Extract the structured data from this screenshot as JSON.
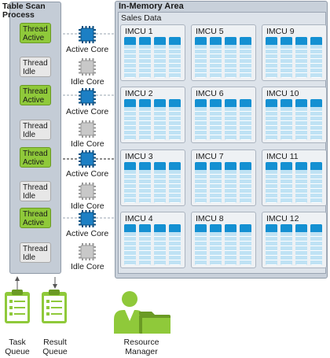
{
  "scan_process": {
    "title_line1": "Table Scan",
    "title_line2": "Process",
    "threads": [
      {
        "line1": "Thread",
        "line2": "Active",
        "state": "active"
      },
      {
        "line1": "Thread",
        "line2": "Idle",
        "state": "idle"
      },
      {
        "line1": "Thread",
        "line2": "Active",
        "state": "active"
      },
      {
        "line1": "Thread",
        "line2": "Idle",
        "state": "idle"
      },
      {
        "line1": "Thread",
        "line2": "Active",
        "state": "active"
      },
      {
        "line1": "Thread",
        "line2": "Idle",
        "state": "idle"
      },
      {
        "line1": "Thread",
        "line2": "Active",
        "state": "active"
      },
      {
        "line1": "Thread",
        "line2": "Idle",
        "state": "idle"
      }
    ]
  },
  "cores": [
    {
      "label": "Active Core",
      "state": "active"
    },
    {
      "label": "Idle Core",
      "state": "idle"
    },
    {
      "label": "Active Core",
      "state": "active"
    },
    {
      "label": "Idle Core",
      "state": "idle"
    },
    {
      "label": "Active Core",
      "state": "active"
    },
    {
      "label": "Idle Core",
      "state": "idle"
    },
    {
      "label": "Active Core",
      "state": "active"
    },
    {
      "label": "Idle Core",
      "state": "idle"
    }
  ],
  "memory_area": {
    "title": "In-Memory Area",
    "table_name": "Sales Data",
    "imcus": [
      [
        "IMCU 1",
        "IMCU 5",
        "IMCU 9"
      ],
      [
        "IMCU 2",
        "IMCU 6",
        "IMCU 10"
      ],
      [
        "IMCU 3",
        "IMCU 7",
        "IMCU 11"
      ],
      [
        "IMCU 4",
        "IMCU 8",
        "IMCU 12"
      ]
    ]
  },
  "queues": {
    "task_line1": "Task",
    "task_line2": "Queue",
    "result_line1": "Result",
    "result_line2": "Queue"
  },
  "resource_manager": {
    "line1": "Resource",
    "line2": "Manager"
  },
  "colors": {
    "active_green": "#8fc93a",
    "core_blue": "#1c7fc4",
    "idle_gray": "#c8c8c8",
    "column_blue": "#2a9fd8"
  }
}
